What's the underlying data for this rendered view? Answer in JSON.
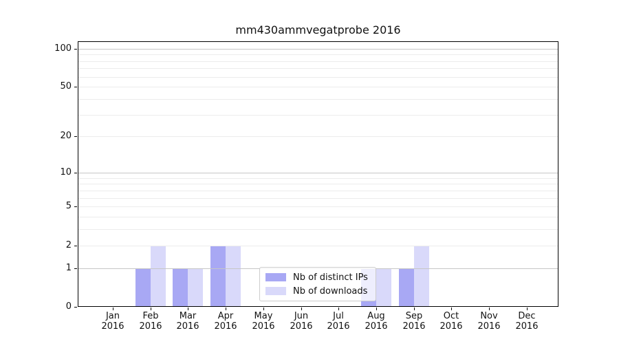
{
  "title": "mm430ammvegatprobe 2016",
  "legend": {
    "items": [
      {
        "label": "Nb of distinct IPs",
        "color": "#a8a8f4"
      },
      {
        "label": "Nb of downloads",
        "color": "#d9d9fa"
      }
    ]
  },
  "axes": {
    "y_tick_labels": [
      "0",
      "1",
      "2",
      "5",
      "10",
      "20",
      "50",
      "100"
    ],
    "x_month_labels": [
      "Jan",
      "Feb",
      "Mar",
      "Apr",
      "May",
      "Jun",
      "Jul",
      "Aug",
      "Sep",
      "Oct",
      "Nov",
      "Dec"
    ],
    "x_year_label": "2016"
  },
  "chart_data": {
    "type": "bar",
    "title": "mm430ammvegatprobe 2016",
    "categories": [
      "Jan 2016",
      "Feb 2016",
      "Mar 2016",
      "Apr 2016",
      "May 2016",
      "Jun 2016",
      "Jul 2016",
      "Aug 2016",
      "Sep 2016",
      "Oct 2016",
      "Nov 2016",
      "Dec 2016"
    ],
    "series": [
      {
        "name": "Nb of distinct IPs",
        "color": "#a8a8f4",
        "values": [
          0,
          1,
          1,
          2,
          0,
          0,
          0,
          1,
          1,
          0,
          0,
          0
        ]
      },
      {
        "name": "Nb of downloads",
        "color": "#d9d9fa",
        "values": [
          0,
          2,
          1,
          2,
          0,
          0,
          0,
          1,
          2,
          0,
          0,
          0
        ]
      }
    ],
    "xlabel": "",
    "ylabel": "",
    "yscale": "log1p",
    "ylim": [
      0,
      114
    ],
    "yticks": [
      0,
      1,
      2,
      5,
      10,
      20,
      50,
      100
    ],
    "major_gridlines": [
      1,
      10,
      100
    ],
    "minor_gridlines": [
      2,
      3,
      4,
      5,
      6,
      7,
      8,
      9,
      20,
      30,
      40,
      50,
      60,
      70,
      80,
      90
    ],
    "grid": "horizontal",
    "legend_position": "lower center",
    "colors": {
      "major_grid": "#c6c6c6",
      "minor_grid": "#ececec",
      "spine": "#000000",
      "text": "#111111",
      "legend_border": "#cccccc"
    }
  }
}
